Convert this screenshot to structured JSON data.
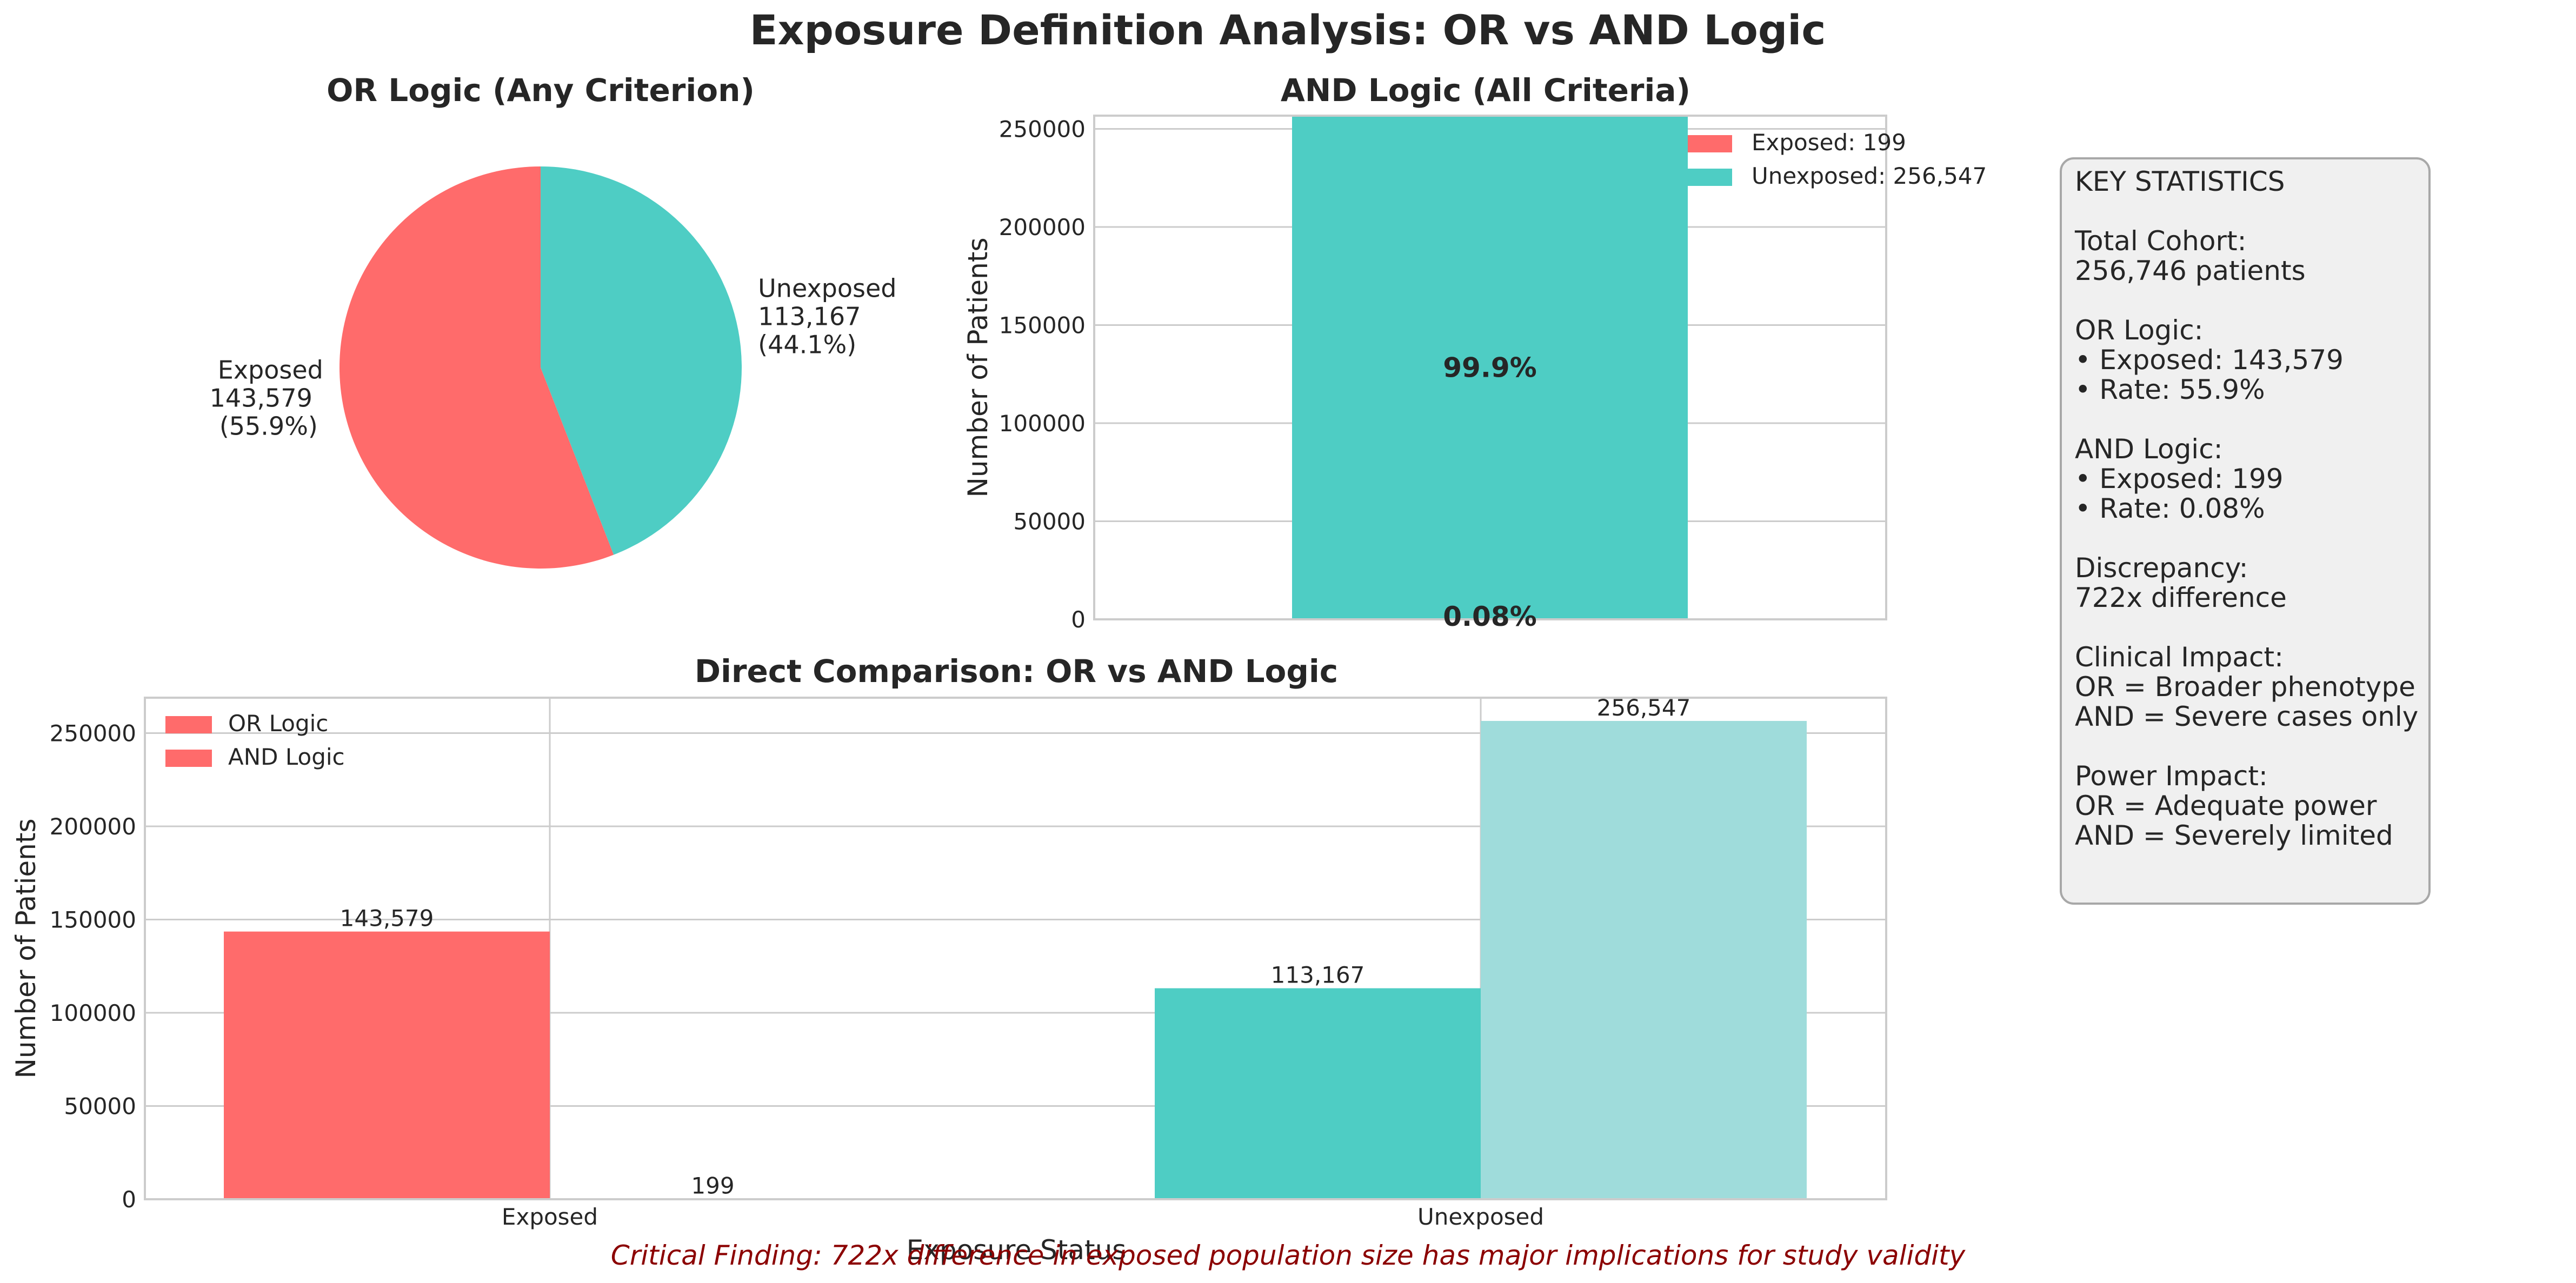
{
  "figure_title": "Exposure Definition Analysis: OR vs AND Logic",
  "colors": {
    "exposed": "#ff6b6b",
    "unexposed": "#4ecdc4",
    "unexposed_light": "#9fdcdb",
    "finding": "#8b0000"
  },
  "chart_data": [
    {
      "type": "pie",
      "title": "OR Logic (Any Criterion)",
      "slices": [
        {
          "label": "Exposed",
          "value": 143579,
          "value_label": "143,579",
          "pct_label": "(55.9%)",
          "color": "#ff6b6b"
        },
        {
          "label": "Unexposed",
          "value": 113167,
          "value_label": "113,167",
          "pct_label": "(44.1%)",
          "color": "#4ecdc4"
        }
      ]
    },
    {
      "type": "bar",
      "stacked": true,
      "title": "AND Logic (All Criteria)",
      "xlabel": "",
      "ylabel": "Number of Patients",
      "ylim": [
        0,
        256746
      ],
      "yticks": [
        0,
        50000,
        100000,
        150000,
        200000,
        250000
      ],
      "grid": true,
      "legend": "top-right",
      "series": [
        {
          "name": "Exposed: 199",
          "value": 199,
          "pct_label": "0.08%",
          "color": "#ff6b6b"
        },
        {
          "name": "Unexposed: 256,547",
          "value": 256547,
          "pct_label": "99.9%",
          "color": "#4ecdc4"
        }
      ]
    },
    {
      "type": "bar",
      "title": "Direct Comparison: OR vs AND Logic",
      "xlabel": "Exposure Status",
      "ylabel": "Number of Patients",
      "categories": [
        "Exposed",
        "Unexposed"
      ],
      "ylim": [
        0,
        269000
      ],
      "yticks": [
        0,
        50000,
        100000,
        150000,
        200000,
        250000
      ],
      "grid": true,
      "legend": "top-left",
      "series": [
        {
          "name": "OR Logic",
          "values": [
            143579,
            113167
          ],
          "value_labels": [
            "143,579",
            "113,167"
          ],
          "colors": [
            "#ff6b6b",
            "#4ecdc4"
          ]
        },
        {
          "name": "AND Logic",
          "values": [
            199,
            256547
          ],
          "value_labels": [
            "199",
            "256,547"
          ],
          "colors": [
            "#ff6b6b",
            "#9fdcdb"
          ]
        }
      ]
    }
  ],
  "stats_box": {
    "lines": [
      "KEY STATISTICS",
      "",
      "Total Cohort:",
      "256,746 patients",
      "",
      "OR Logic:",
      "• Exposed: 143,579",
      "• Rate: 55.9%",
      "",
      "AND Logic:",
      "• Exposed: 199",
      "• Rate: 0.08%",
      "",
      "Discrepancy:",
      "722x difference",
      "",
      "Clinical Impact:",
      "OR = Broader phenotype",
      "AND = Severe cases only",
      "",
      "Power Impact:",
      "OR = Adequate power",
      "AND = Severely limited"
    ]
  },
  "footer_note": "Critical Finding: 722x difference in exposed population size has major implications for study validity"
}
